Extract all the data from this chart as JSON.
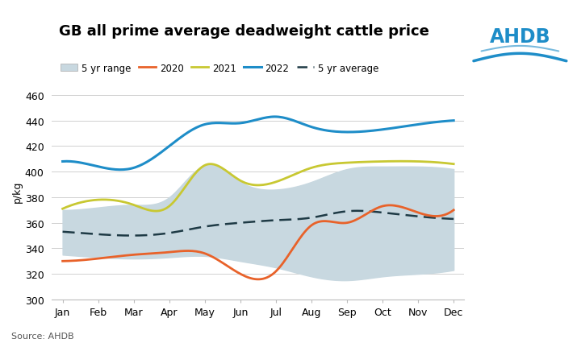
{
  "title": "GB all prime average deadweight cattle price",
  "ylabel": "p/kg",
  "source": "Source: AHDB",
  "ylim": [
    300,
    470
  ],
  "yticks": [
    300,
    320,
    340,
    360,
    380,
    400,
    420,
    440,
    460
  ],
  "months": [
    "Jan",
    "Feb",
    "Mar",
    "Apr",
    "May",
    "Jun",
    "Jul",
    "Aug",
    "Sep",
    "Oct",
    "Nov",
    "Dec"
  ],
  "range_low": [
    335,
    333,
    332,
    333,
    334,
    330,
    325,
    318,
    315,
    318,
    320,
    323
  ],
  "range_high": [
    370,
    372,
    374,
    380,
    405,
    392,
    386,
    392,
    402,
    404,
    404,
    402
  ],
  "avg_5yr": [
    353,
    351,
    350,
    352,
    357,
    360,
    362,
    364,
    369,
    368,
    365,
    363
  ],
  "data_2020": [
    330,
    332,
    335,
    337,
    336,
    320,
    322,
    358,
    360,
    373,
    368,
    370
  ],
  "data_2021": [
    371,
    378,
    374,
    373,
    405,
    393,
    392,
    403,
    407,
    408,
    408,
    406
  ],
  "data_2022": [
    408,
    404,
    403,
    420,
    437,
    438,
    443,
    435,
    431,
    433,
    437,
    440
  ],
  "color_2020": "#E8622A",
  "color_2021": "#C8C832",
  "color_2022": "#1E8DC8",
  "color_avg": "#1E3A45",
  "color_range": "#C8D8E0",
  "background_color": "#FFFFFF",
  "grid_color": "#D0D0D0",
  "title_fontsize": 13,
  "label_fontsize": 9,
  "tick_fontsize": 9,
  "ahdb_blue": "#1E8DC8"
}
